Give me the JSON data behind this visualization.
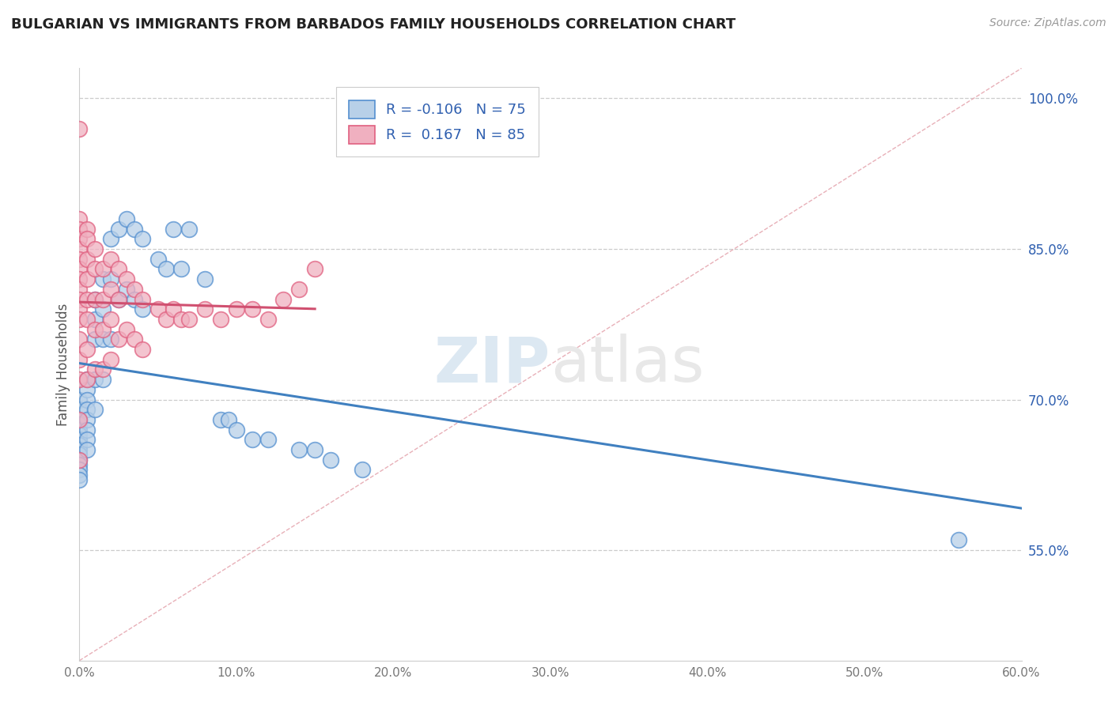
{
  "title": "BULGARIAN VS IMMIGRANTS FROM BARBADOS FAMILY HOUSEHOLDS CORRELATION CHART",
  "source": "Source: ZipAtlas.com",
  "ylabel": "Family Households",
  "xlim": [
    0.0,
    0.6
  ],
  "ylim": [
    0.44,
    1.03
  ],
  "xtick_vals": [
    0.0,
    0.1,
    0.2,
    0.3,
    0.4,
    0.5,
    0.6
  ],
  "xtick_labels": [
    "0.0%",
    "10.0%",
    "20.0%",
    "30.0%",
    "40.0%",
    "50.0%",
    "60.0%"
  ],
  "ytick_vals": [
    0.55,
    0.7,
    0.85,
    1.0
  ],
  "ytick_labels": [
    "55.0%",
    "70.0%",
    "85.0%",
    "100.0%"
  ],
  "gridline_yticks": [
    0.55,
    0.7,
    0.85,
    1.0
  ],
  "blue_R": -0.106,
  "blue_N": 75,
  "pink_R": 0.167,
  "pink_N": 85,
  "blue_fill": "#b8d0e8",
  "pink_fill": "#f0b0c0",
  "blue_edge": "#5590d0",
  "pink_edge": "#e06080",
  "blue_line": "#4080c0",
  "pink_line": "#d05070",
  "diag_color": "#e8b0b8",
  "watermark_color": "#e0e8f0",
  "legend_blue_label": "R = -0.106   N = 75",
  "legend_pink_label": "R =  0.167   N = 85",
  "legend_text_color": "#3060b0",
  "blue_x": [
    0.0,
    0.0,
    0.0,
    0.0,
    0.0,
    0.0,
    0.0,
    0.0,
    0.0,
    0.0,
    0.0,
    0.0,
    0.0,
    0.0,
    0.0,
    0.005,
    0.005,
    0.005,
    0.005,
    0.005,
    0.005,
    0.005,
    0.005,
    0.01,
    0.01,
    0.01,
    0.01,
    0.01,
    0.015,
    0.015,
    0.015,
    0.015,
    0.02,
    0.02,
    0.02,
    0.025,
    0.025,
    0.03,
    0.03,
    0.035,
    0.035,
    0.04,
    0.04,
    0.05,
    0.055,
    0.06,
    0.065,
    0.07,
    0.08,
    0.09,
    0.095,
    0.1,
    0.11,
    0.12,
    0.14,
    0.15,
    0.16,
    0.18,
    0.56
  ],
  "blue_y": [
    0.7,
    0.69,
    0.68,
    0.675,
    0.67,
    0.665,
    0.66,
    0.655,
    0.65,
    0.645,
    0.64,
    0.635,
    0.63,
    0.625,
    0.62,
    0.72,
    0.71,
    0.7,
    0.69,
    0.68,
    0.67,
    0.66,
    0.65,
    0.8,
    0.78,
    0.76,
    0.72,
    0.69,
    0.82,
    0.79,
    0.76,
    0.72,
    0.86,
    0.82,
    0.76,
    0.87,
    0.8,
    0.88,
    0.81,
    0.87,
    0.8,
    0.86,
    0.79,
    0.84,
    0.83,
    0.87,
    0.83,
    0.87,
    0.82,
    0.68,
    0.68,
    0.67,
    0.66,
    0.66,
    0.65,
    0.65,
    0.64,
    0.63,
    0.56
  ],
  "pink_x": [
    0.0,
    0.0,
    0.0,
    0.0,
    0.0,
    0.0,
    0.0,
    0.0,
    0.0,
    0.0,
    0.0,
    0.0,
    0.0,
    0.0,
    0.0,
    0.0,
    0.0,
    0.005,
    0.005,
    0.005,
    0.005,
    0.005,
    0.005,
    0.005,
    0.005,
    0.01,
    0.01,
    0.01,
    0.01,
    0.01,
    0.015,
    0.015,
    0.015,
    0.015,
    0.02,
    0.02,
    0.02,
    0.02,
    0.025,
    0.025,
    0.025,
    0.03,
    0.03,
    0.035,
    0.035,
    0.04,
    0.04,
    0.05,
    0.055,
    0.06,
    0.065,
    0.07,
    0.08,
    0.09,
    0.1,
    0.11,
    0.12,
    0.13,
    0.14,
    0.15
  ],
  "pink_y": [
    0.97,
    0.88,
    0.87,
    0.86,
    0.85,
    0.84,
    0.83,
    0.82,
    0.81,
    0.8,
    0.79,
    0.78,
    0.76,
    0.74,
    0.72,
    0.68,
    0.64,
    0.87,
    0.86,
    0.84,
    0.82,
    0.8,
    0.78,
    0.75,
    0.72,
    0.85,
    0.83,
    0.8,
    0.77,
    0.73,
    0.83,
    0.8,
    0.77,
    0.73,
    0.84,
    0.81,
    0.78,
    0.74,
    0.83,
    0.8,
    0.76,
    0.82,
    0.77,
    0.81,
    0.76,
    0.8,
    0.75,
    0.79,
    0.78,
    0.79,
    0.78,
    0.78,
    0.79,
    0.78,
    0.79,
    0.79,
    0.78,
    0.8,
    0.81,
    0.83
  ]
}
